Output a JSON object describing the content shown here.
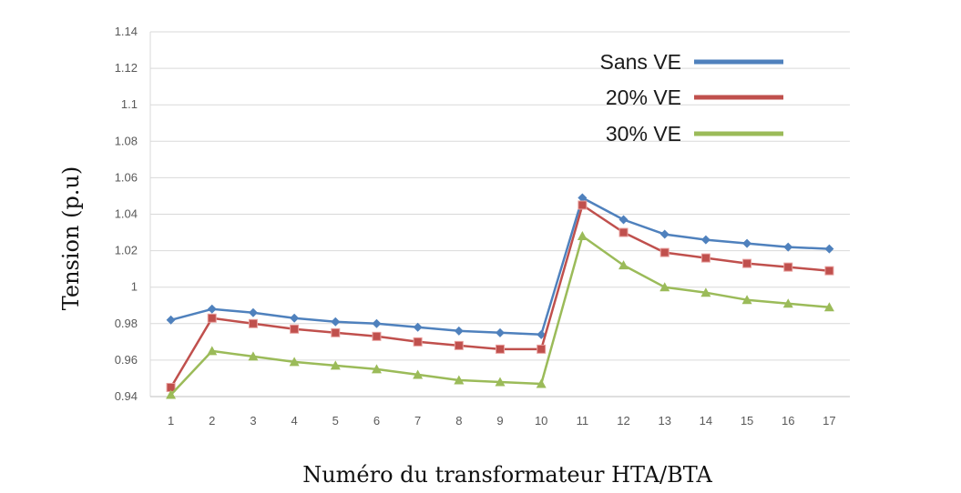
{
  "chart_data": {
    "type": "line",
    "title": "",
    "xlabel": "Numéro du transformateur HTA/BTA",
    "ylabel": "Tension (p.u)",
    "x": [
      1,
      2,
      3,
      4,
      5,
      6,
      7,
      8,
      9,
      10,
      11,
      12,
      13,
      14,
      15,
      16,
      17
    ],
    "ylim": [
      0.94,
      1.14
    ],
    "yticks": [
      "0.94",
      "0.96",
      "0.98",
      "1",
      "1.02",
      "1.04",
      "1.06",
      "1.08",
      "1.1",
      "1.12",
      "1.14"
    ],
    "ytick_values": [
      0.94,
      0.96,
      0.98,
      1.0,
      1.02,
      1.04,
      1.06,
      1.08,
      1.1,
      1.12,
      1.14
    ],
    "grid": "horizontal",
    "legend_position": "top-right",
    "series": [
      {
        "name": "Sans VE",
        "color": "#4F81BD",
        "marker": "diamond",
        "values": [
          0.982,
          0.988,
          0.986,
          0.983,
          0.981,
          0.98,
          0.978,
          0.976,
          0.975,
          0.974,
          1.049,
          1.037,
          1.029,
          1.026,
          1.024,
          1.022,
          1.021
        ]
      },
      {
        "name": "20% VE",
        "color": "#C0504D",
        "marker": "square",
        "values": [
          0.945,
          0.983,
          0.98,
          0.977,
          0.975,
          0.973,
          0.97,
          0.968,
          0.966,
          0.966,
          1.045,
          1.03,
          1.019,
          1.016,
          1.013,
          1.011,
          1.009
        ]
      },
      {
        "name": "30% VE",
        "color": "#9BBB59",
        "marker": "triangle",
        "values": [
          0.941,
          0.965,
          0.962,
          0.959,
          0.957,
          0.955,
          0.952,
          0.949,
          0.948,
          0.947,
          1.028,
          1.012,
          1.0,
          0.997,
          0.993,
          0.991,
          0.989
        ]
      }
    ]
  }
}
